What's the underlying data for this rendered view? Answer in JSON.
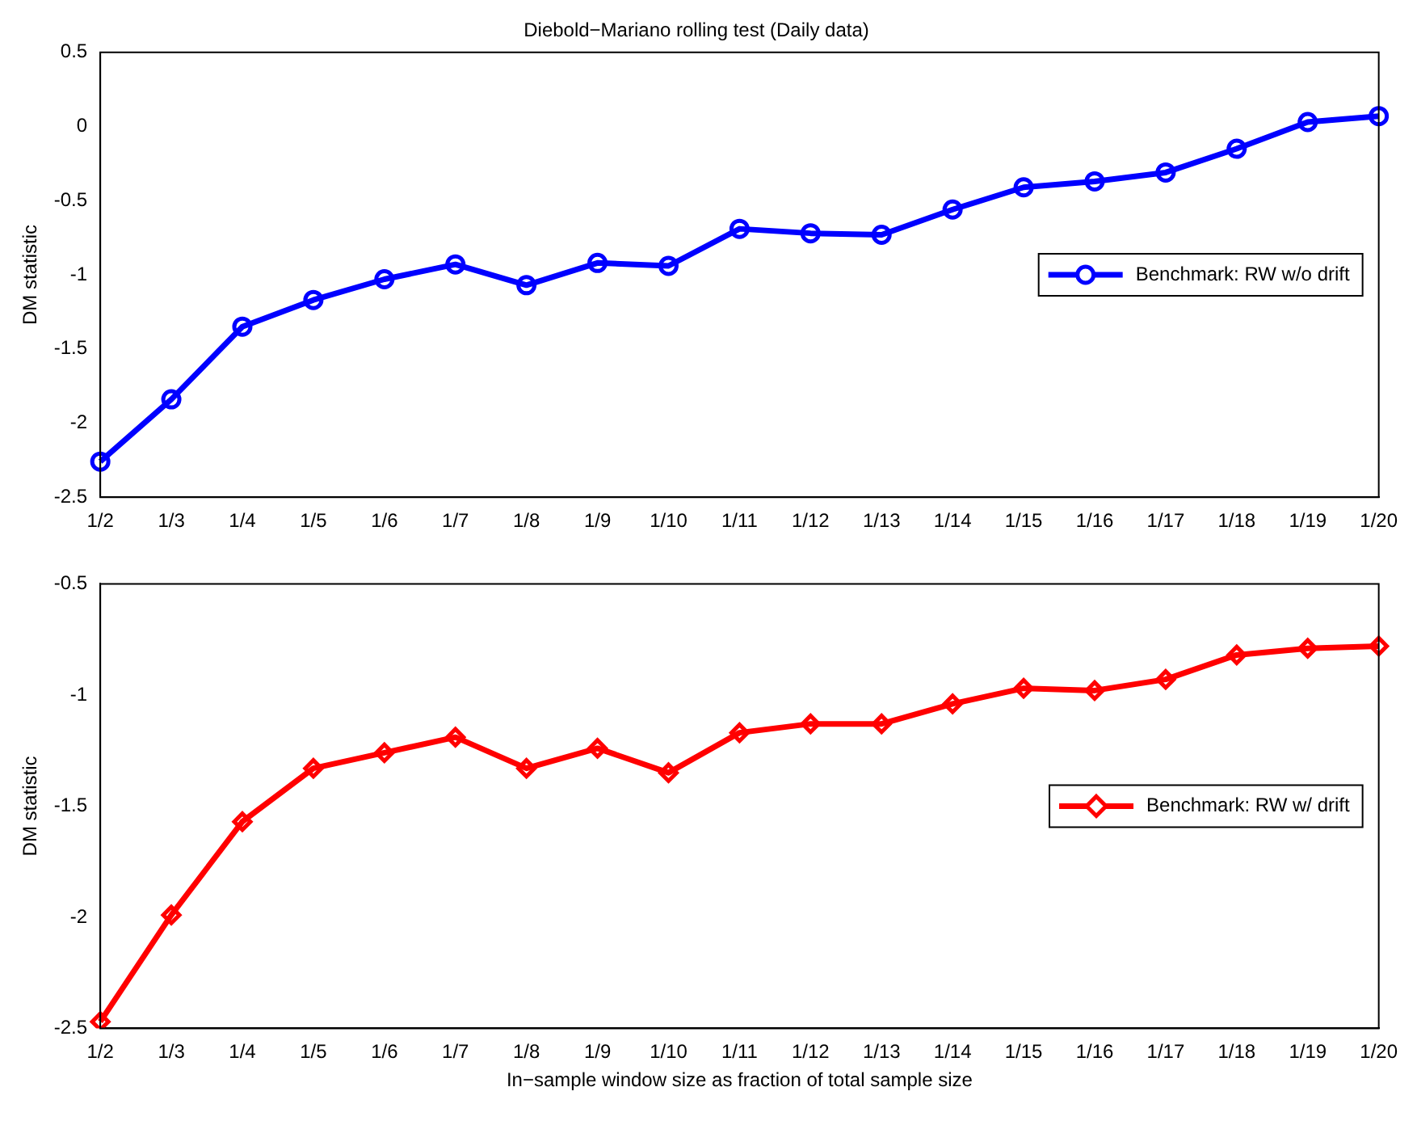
{
  "chart_data": [
    {
      "type": "line",
      "title": "Diebold−Mariano rolling test (Daily data)",
      "ylabel": "DM statistic",
      "categories": [
        "1/2",
        "1/3",
        "1/4",
        "1/5",
        "1/6",
        "1/7",
        "1/8",
        "1/9",
        "1/10",
        "1/11",
        "1/12",
        "1/13",
        "1/14",
        "1/15",
        "1/16",
        "1/17",
        "1/18",
        "1/19",
        "1/20"
      ],
      "series": [
        {
          "name": "Benchmark: RW w/o drift",
          "color": "#0000ff",
          "values": [
            -2.26,
            -1.84,
            -1.35,
            -1.17,
            -1.03,
            -0.93,
            -1.07,
            -0.92,
            -0.94,
            -0.69,
            -0.72,
            -0.73,
            -0.56,
            -0.41,
            -0.37,
            -0.31,
            -0.15,
            0.03,
            0.07
          ]
        }
      ],
      "ylim": [
        -2.5,
        0.5
      ],
      "yticks": [
        -2.5,
        -2,
        -1.5,
        -1,
        -0.5,
        0,
        0.5
      ],
      "grid": false,
      "legend": "right",
      "marker": "circle",
      "line_style": "solid"
    },
    {
      "type": "line",
      "xlabel": "In−sample window size as fraction of total sample size",
      "ylabel": "DM statistic",
      "categories": [
        "1/2",
        "1/3",
        "1/4",
        "1/5",
        "1/6",
        "1/7",
        "1/8",
        "1/9",
        "1/10",
        "1/11",
        "1/12",
        "1/13",
        "1/14",
        "1/15",
        "1/16",
        "1/17",
        "1/18",
        "1/19",
        "1/20"
      ],
      "series": [
        {
          "name": "Benchmark: RW w/ drift",
          "color": "#ff0000",
          "values": [
            -2.47,
            -1.99,
            -1.57,
            -1.33,
            -1.26,
            -1.19,
            -1.33,
            -1.24,
            -1.35,
            -1.17,
            -1.13,
            -1.13,
            -1.04,
            -0.97,
            -0.98,
            -0.93,
            -0.82,
            -0.79,
            -0.78
          ]
        }
      ],
      "ylim": [
        -2.5,
        -0.5
      ],
      "yticks": [
        -2.5,
        -2,
        -1.5,
        -1,
        -0.5
      ],
      "grid": false,
      "legend": "right",
      "marker": "diamond",
      "line_style": "solid"
    }
  ]
}
